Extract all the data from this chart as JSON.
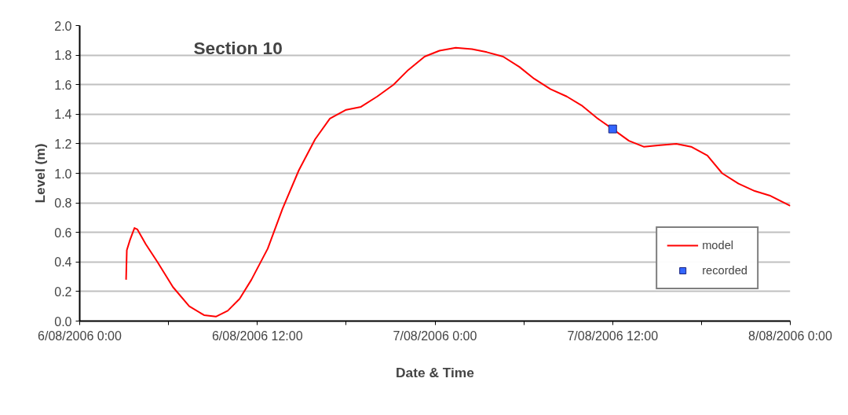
{
  "chart_data": {
    "type": "line",
    "title": "Section 10",
    "xlabel": "Date & Time",
    "ylabel": "Level (m)",
    "series": [
      {
        "name": "model",
        "color": "#ff0000",
        "marker": "none",
        "x": [
          "2006-08-06T03:08",
          "2006-08-06T03:11",
          "2006-08-06T03:24",
          "2006-08-06T03:42",
          "2006-08-06T03:54",
          "2006-08-06T04:28",
          "2006-08-06T05:15",
          "2006-08-06T06:18",
          "2006-08-06T07:24",
          "2006-08-06T08:24",
          "2006-08-06T09:12",
          "2006-08-06T10:00",
          "2006-08-06T10:48",
          "2006-08-06T11:36",
          "2006-08-06T12:42",
          "2006-08-06T13:42",
          "2006-08-06T14:48",
          "2006-08-06T15:54",
          "2006-08-06T16:54",
          "2006-08-06T18:00",
          "2006-08-06T19:00",
          "2006-08-06T20:06",
          "2006-08-06T21:12",
          "2006-08-06T22:12",
          "2006-08-06T23:18",
          "2006-08-07T00:18",
          "2006-08-07T01:24",
          "2006-08-07T02:30",
          "2006-08-07T03:30",
          "2006-08-07T04:36",
          "2006-08-07T05:42",
          "2006-08-07T06:42",
          "2006-08-07T07:48",
          "2006-08-07T08:54",
          "2006-08-07T09:54",
          "2006-08-07T11:00",
          "2006-08-07T12:00",
          "2006-08-07T13:06",
          "2006-08-07T14:06",
          "2006-08-07T15:12",
          "2006-08-07T16:18",
          "2006-08-07T17:18",
          "2006-08-07T18:24",
          "2006-08-07T19:24",
          "2006-08-07T20:30",
          "2006-08-07T21:36",
          "2006-08-07T22:36",
          "2006-08-08T00:00"
        ],
        "values": [
          0.28,
          0.48,
          0.55,
          0.63,
          0.62,
          0.52,
          0.4,
          0.23,
          0.1,
          0.04,
          0.03,
          0.07,
          0.15,
          0.28,
          0.49,
          0.76,
          1.02,
          1.23,
          1.37,
          1.43,
          1.45,
          1.52,
          1.6,
          1.7,
          1.79,
          1.83,
          1.85,
          1.84,
          1.82,
          1.79,
          1.72,
          1.64,
          1.57,
          1.52,
          1.46,
          1.37,
          1.3,
          1.22,
          1.18,
          1.19,
          1.2,
          1.18,
          1.12,
          1.0,
          0.93,
          0.88,
          0.85,
          0.78
        ]
      },
      {
        "name": "recorded",
        "color": "#3366ff",
        "type": "scatter",
        "marker": "square",
        "x": [
          "2006-08-07T12:00"
        ],
        "values": [
          1.3
        ]
      }
    ],
    "xlim": [
      "2006-08-06T00:00",
      "2006-08-08T00:00"
    ],
    "xticks": [
      {
        "value": "2006-08-06T00:00",
        "label": "6/08/2006 0:00"
      },
      {
        "value": "2006-08-06T06:00",
        "label": null
      },
      {
        "value": "2006-08-06T12:00",
        "label": "6/08/2006 12:00"
      },
      {
        "value": "2006-08-06T18:00",
        "label": null
      },
      {
        "value": "2006-08-07T00:00",
        "label": "7/08/2006 0:00"
      },
      {
        "value": "2006-08-07T06:00",
        "label": null
      },
      {
        "value": "2006-08-07T12:00",
        "label": "7/08/2006 12:00"
      },
      {
        "value": "2006-08-07T18:00",
        "label": null
      },
      {
        "value": "2006-08-08T00:00",
        "label": "8/08/2006 0:00"
      }
    ],
    "ylim": [
      0,
      2
    ],
    "yticks": [
      {
        "value": 0,
        "label": "0.0"
      },
      {
        "value": 0.2,
        "label": "0.2"
      },
      {
        "value": 0.4,
        "label": "0.4"
      },
      {
        "value": 0.6,
        "label": "0.6"
      },
      {
        "value": 0.8,
        "label": "0.8"
      },
      {
        "value": 1.0,
        "label": "1.0"
      },
      {
        "value": 1.2,
        "label": "1.2"
      },
      {
        "value": 1.4,
        "label": "1.4"
      },
      {
        "value": 1.6,
        "label": "1.6"
      },
      {
        "value": 1.8,
        "label": "1.8"
      },
      {
        "value": 2.0,
        "label": "2.0"
      }
    ],
    "grid": "y",
    "legend": "bottom right"
  }
}
